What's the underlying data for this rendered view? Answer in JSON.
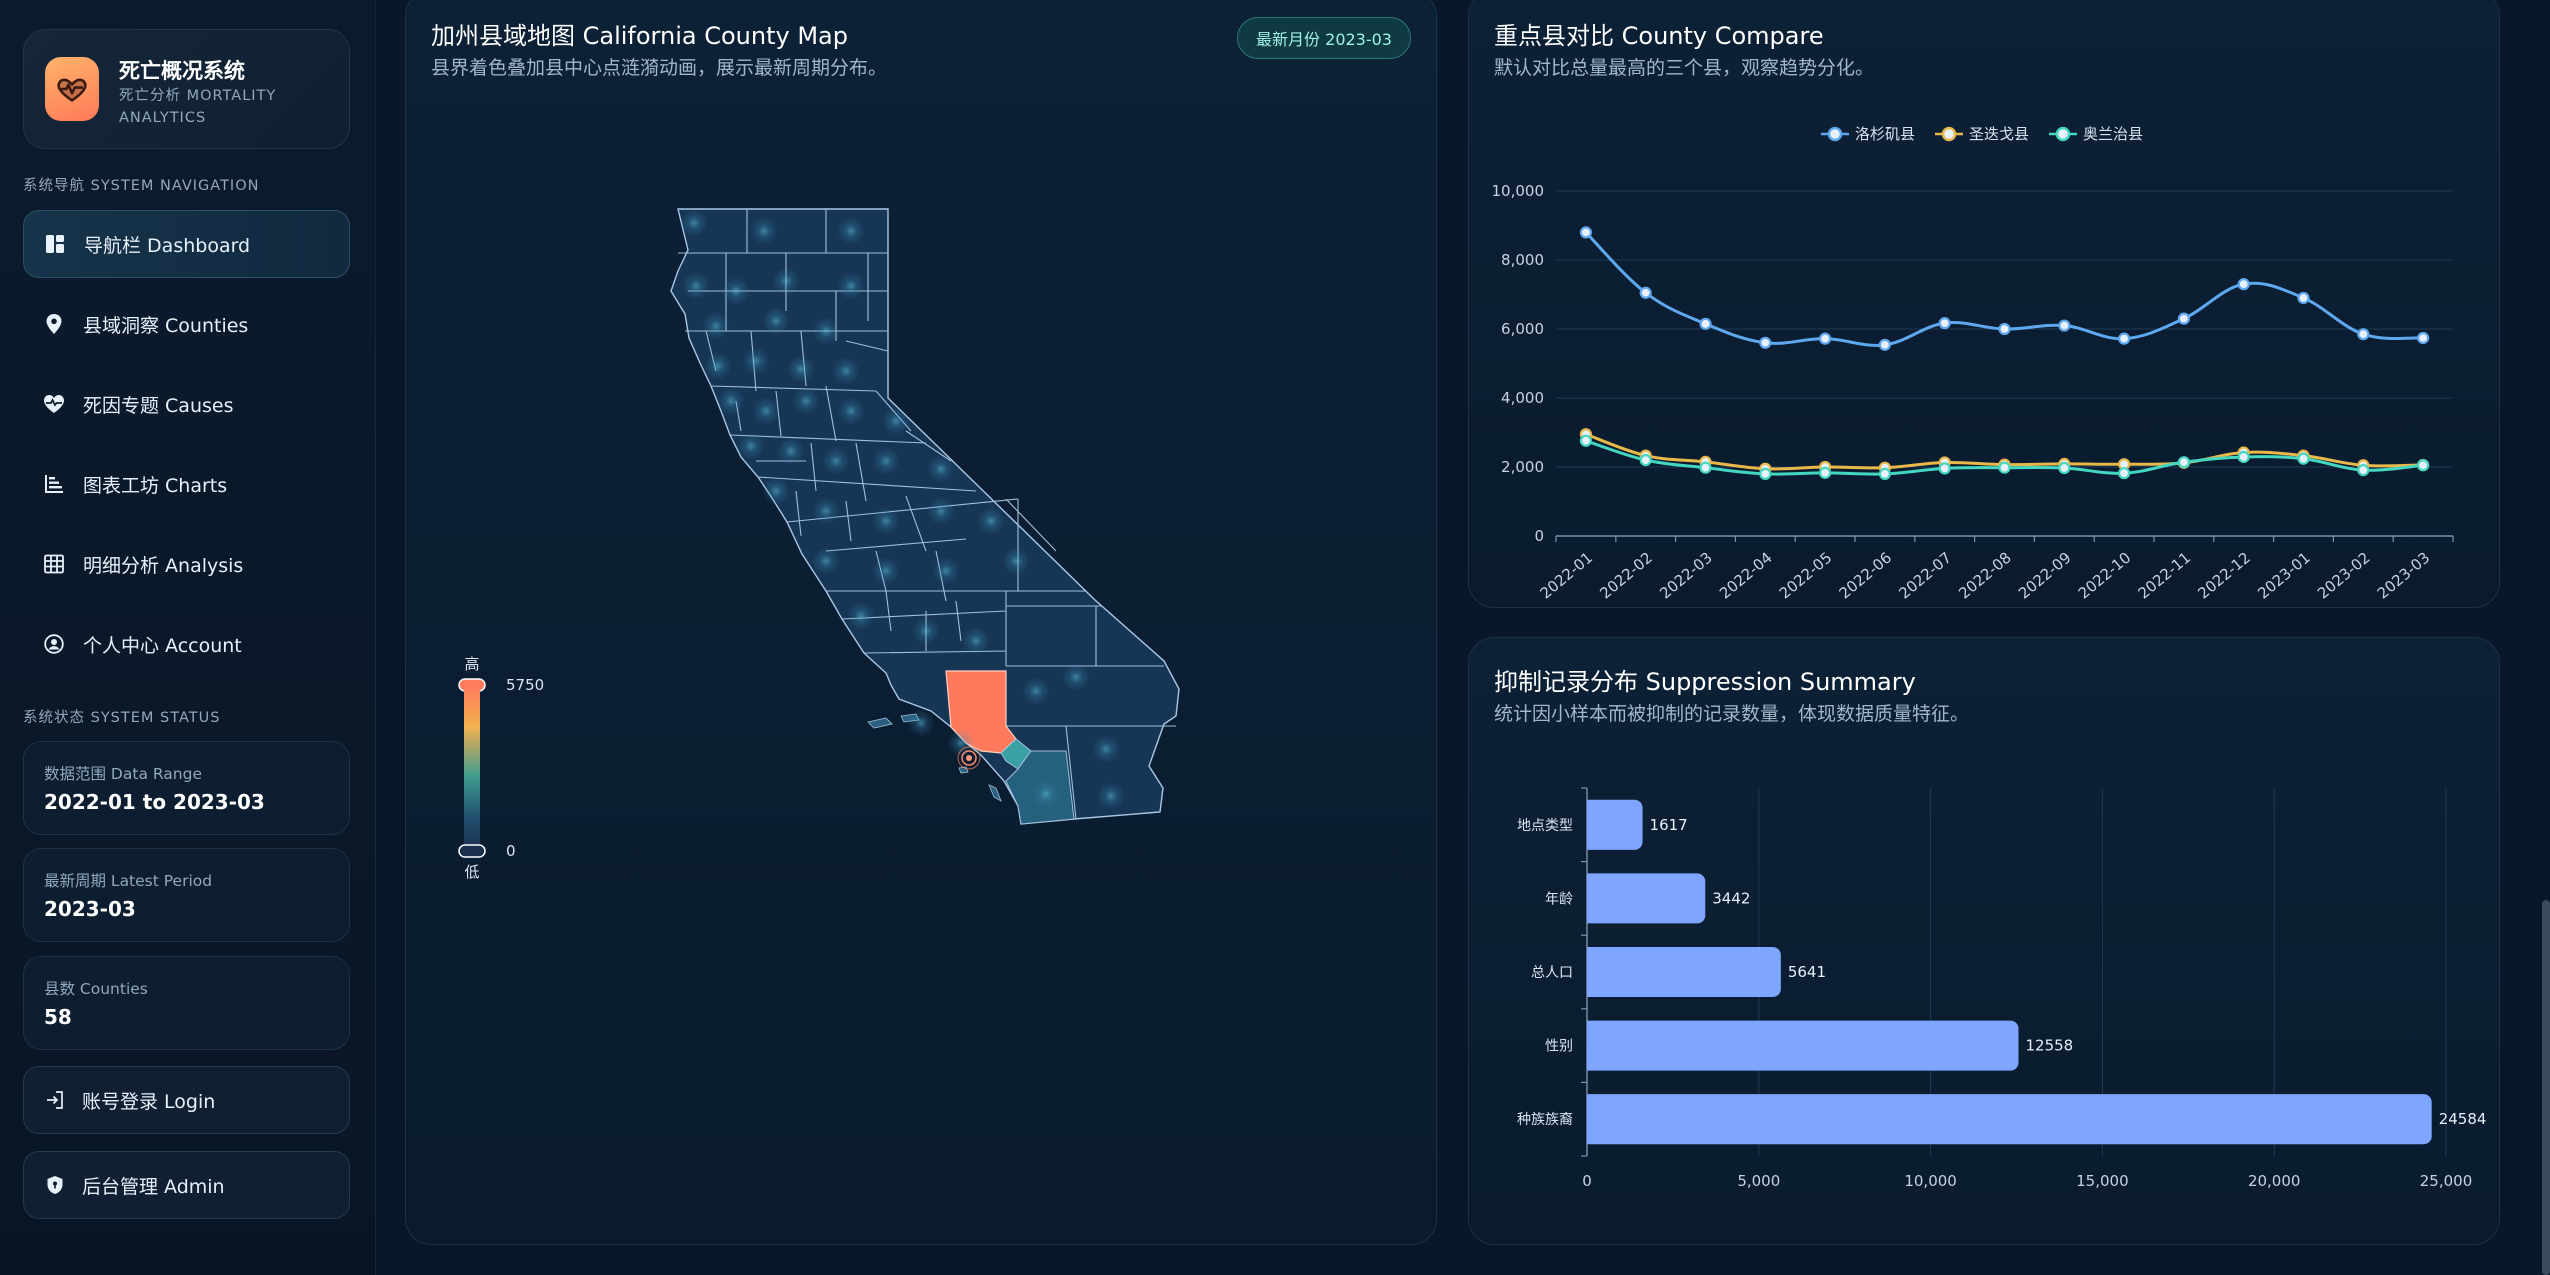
{
  "sidebar": {
    "brand": {
      "title": "死亡概况系统",
      "subtitle": "死亡分析 MORTALITY ANALYTICS",
      "logo_icon": "heartbeat-icon",
      "logo_gradient": [
        "#ffb36a",
        "#ff7a59"
      ]
    },
    "nav_section_label": "系统导航 SYSTEM NAVIGATION",
    "nav_items": [
      {
        "label": "导航栏 Dashboard",
        "icon": "dashboard-icon",
        "active": true
      },
      {
        "label": "县域洞察 Counties",
        "icon": "map-pin-icon",
        "active": false
      },
      {
        "label": "死因专题 Causes",
        "icon": "heart-pulse-icon",
        "active": false
      },
      {
        "label": "图表工坊 Charts",
        "icon": "bar-list-icon",
        "active": false
      },
      {
        "label": "明细分析 Analysis",
        "icon": "table-icon",
        "active": false
      },
      {
        "label": "个人中心 Account",
        "icon": "user-circle-icon",
        "active": false
      }
    ],
    "status_section_label": "系统状态 SYSTEM STATUS",
    "status_cards": [
      {
        "label": "数据范围 Data Range",
        "value": "2022-01 to 2023-03"
      },
      {
        "label": "最新周期 Latest Period",
        "value": "2023-03"
      },
      {
        "label": "县数 Counties",
        "value": "58"
      }
    ],
    "buttons": [
      {
        "label": "账号登录 Login",
        "icon": "login-icon"
      },
      {
        "label": "后台管理 Admin",
        "icon": "shield-icon"
      }
    ]
  },
  "map_panel": {
    "title": "加州县域地图 California County Map",
    "subtitle": "县界着色叠加县中心点涟漪动画，展示最新周期分布。",
    "badge": "最新月份 2023-03",
    "legend": {
      "high_label": "高",
      "low_label": "低",
      "max": "5750",
      "min": "0"
    },
    "highlight_color": "#ff7a5c"
  },
  "compare_panel": {
    "title": "重点县对比 County Compare",
    "subtitle": "默认对比总量最高的三个县，观察趋势分化。"
  },
  "suppression_panel": {
    "title": "抑制记录分布 Suppression Summary",
    "subtitle": "统计因小样本而被抑制的记录数量，体现数据质量特征。"
  },
  "chart_data": [
    {
      "type": "line",
      "title": "重点县对比 County Compare",
      "x": [
        "2022-01",
        "2022-02",
        "2022-03",
        "2022-04",
        "2022-05",
        "2022-06",
        "2022-07",
        "2022-08",
        "2022-09",
        "2022-10",
        "2022-11",
        "2022-12",
        "2023-01",
        "2023-02",
        "2023-03"
      ],
      "ylim": [
        0,
        10000
      ],
      "yticks": [
        "0",
        "2,000",
        "4,000",
        "6,000",
        "8,000",
        "10,000"
      ],
      "legend_position": "top-center",
      "series": [
        {
          "name": "洛杉矶县",
          "color": "#5ea8f0",
          "values": [
            8800,
            7050,
            6150,
            5600,
            5720,
            5540,
            6170,
            6000,
            6100,
            5720,
            6300,
            7300,
            6900,
            5850,
            5740
          ]
        },
        {
          "name": "圣迭戈县",
          "color": "#e8b84a",
          "values": [
            2950,
            2330,
            2150,
            1950,
            2000,
            1980,
            2130,
            2070,
            2090,
            2080,
            2120,
            2420,
            2330,
            2050,
            2060
          ]
        },
        {
          "name": "奥兰治县",
          "color": "#43d6c0",
          "values": [
            2760,
            2200,
            1980,
            1800,
            1830,
            1800,
            1960,
            1980,
            1970,
            1820,
            2140,
            2290,
            2240,
            1910,
            2050
          ]
        }
      ]
    },
    {
      "type": "bar",
      "orientation": "horizontal",
      "title": "抑制记录分布 Suppression Summary",
      "categories": [
        "地点类型",
        "年龄",
        "总人口",
        "性别",
        "种族族裔"
      ],
      "values": [
        1617,
        3442,
        5641,
        12558,
        24584
      ],
      "value_labels": [
        "1617",
        "3442",
        "5641",
        "12558",
        "24584"
      ],
      "xlim": [
        0,
        25000
      ],
      "xticks": [
        "0",
        "5,000",
        "10,000",
        "15,000",
        "20,000",
        "25,000"
      ],
      "bar_color": "#7fa6ff"
    }
  ]
}
